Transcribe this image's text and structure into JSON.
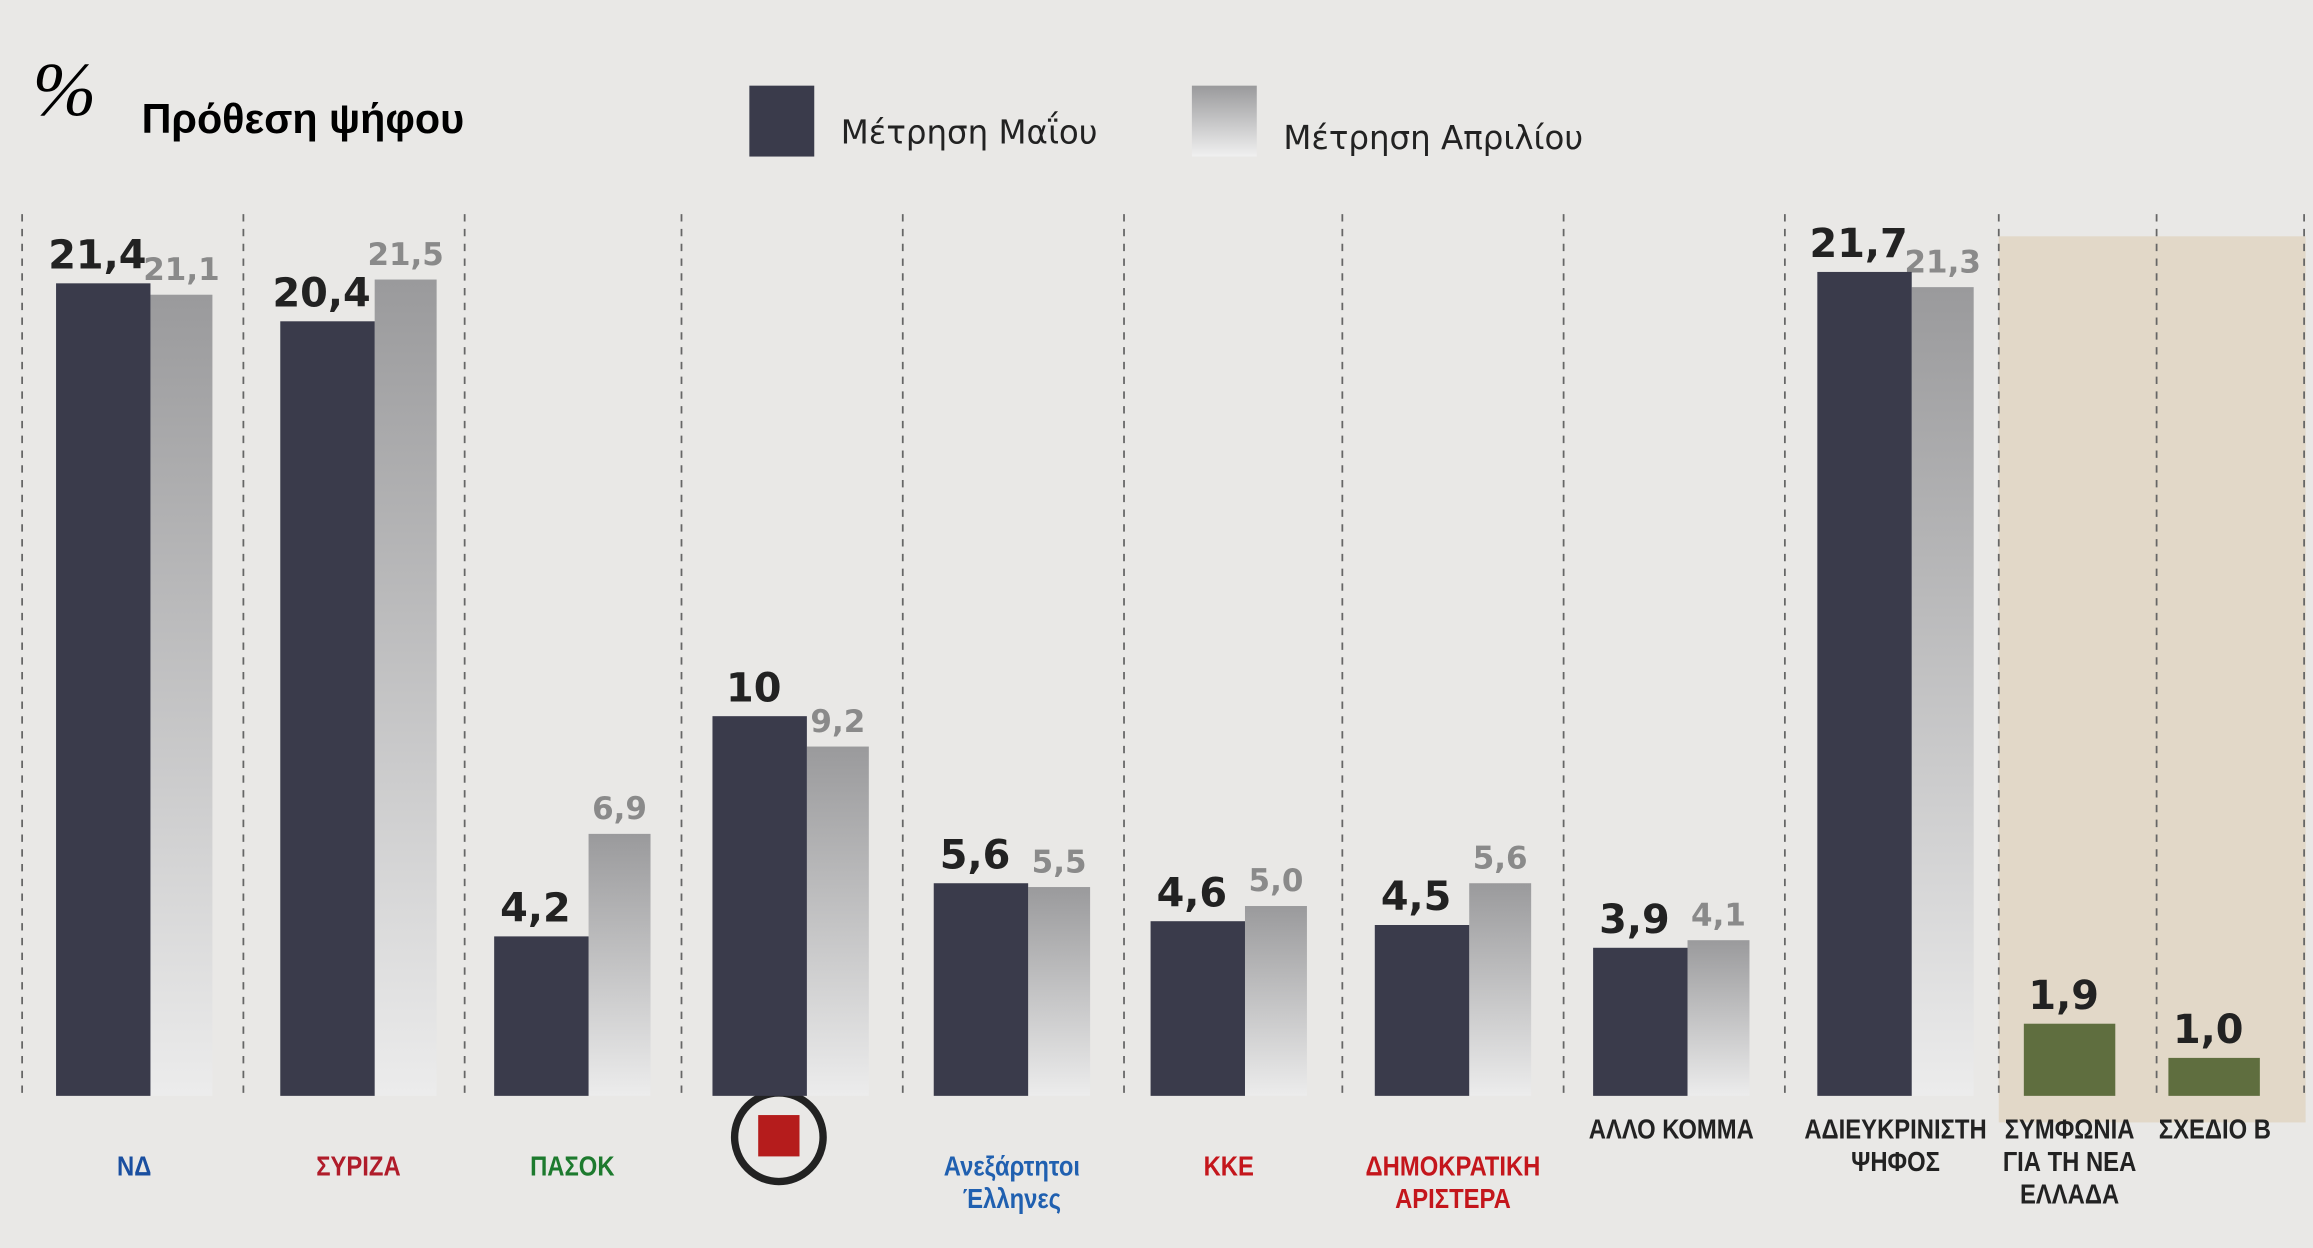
{
  "chart_data": {
    "type": "bar",
    "title": "Πρόθεση ψήφου",
    "title_symbol": "%",
    "categories": [
      "ΝΔ",
      "ΣΥΡΙΖΑ",
      "ΠΑΣΟΚ",
      null,
      "Ανεξάρτητοι Έλληνες",
      "ΚΚΕ",
      "ΔΗΜΟΚΡΑΤΙΚΗ ΑΡΙΣΤΕΡΑ",
      "ΑΛΛΟ ΚΟΜΜΑ",
      "ΑΔΙΕΥΚΡΙΝΙΣΤΗ ΨΗΦΟΣ",
      "ΣΥΜΦΩΝΙΑ ΓΙΑ ΤΗ ΝΕΑ ΕΛΛΑΔΑ",
      "ΣΧΕΔΙΟ Β"
    ],
    "series": [
      {
        "name": "Μέτρηση Μαΐου",
        "color": "#3a3b4b",
        "colors": [
          "#3a3b4b",
          "#3a3b4b",
          "#3a3b4b",
          "#3a3b4b",
          "#3a3b4b",
          "#3a3b4b",
          "#3a3b4b",
          "#3a3b4b",
          "#3a3b4b",
          "#5f6e3f",
          "#5f6e3f"
        ],
        "values": [
          21.4,
          20.4,
          4.2,
          10,
          5.6,
          4.6,
          4.5,
          3.9,
          21.7,
          1.9,
          1.0
        ],
        "value_labels": [
          "21,4",
          "20,4",
          "4,2",
          "10",
          "5,6",
          "4,6",
          "4,5",
          "3,9",
          "21,7",
          "1,9",
          "1,0"
        ]
      },
      {
        "name": "Μέτρηση Απριλίου",
        "color": "#a9a9ab",
        "values": [
          21.1,
          21.5,
          6.9,
          9.2,
          5.5,
          5.0,
          5.6,
          4.1,
          21.3,
          null,
          null
        ],
        "value_labels": [
          "21,1",
          "21,5",
          "6,9",
          "9,2",
          "5,5",
          "5,0",
          "5,6",
          "4,1",
          "21,3",
          null,
          null
        ]
      }
    ],
    "ylim": [
      0,
      24
    ]
  }
}
